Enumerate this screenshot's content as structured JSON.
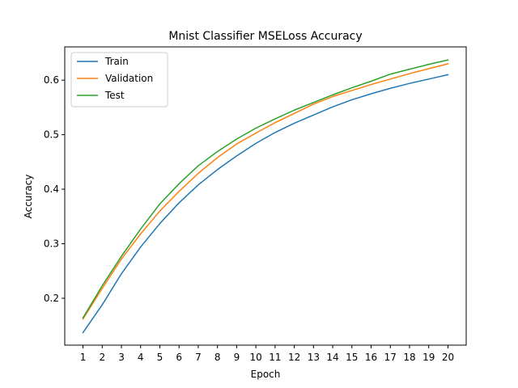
{
  "chart_data": {
    "type": "line",
    "title": "Mnist Classifier MSELoss Accuracy",
    "xlabel": "Epoch",
    "ylabel": "Accuracy",
    "x": [
      1,
      2,
      3,
      4,
      5,
      6,
      7,
      8,
      9,
      10,
      11,
      12,
      13,
      14,
      15,
      16,
      17,
      18,
      19,
      20
    ],
    "x_ticks": [
      "1",
      "2",
      "3",
      "4",
      "5",
      "6",
      "7",
      "8",
      "9",
      "10",
      "11",
      "12",
      "13",
      "14",
      "15",
      "16",
      "17",
      "18",
      "19",
      "20"
    ],
    "y_ticks": [
      "0.2",
      "0.3",
      "0.4",
      "0.5",
      "0.6"
    ],
    "y_tick_values": [
      0.2,
      0.3,
      0.4,
      0.5,
      0.6
    ],
    "xlim": [
      0.05,
      20.95
    ],
    "ylim": [
      0.114,
      0.661
    ],
    "grid": false,
    "legend_position": "top-left",
    "series": [
      {
        "name": "Train",
        "color": "#1f77b4",
        "values": [
          0.137,
          0.188,
          0.245,
          0.294,
          0.337,
          0.375,
          0.408,
          0.436,
          0.461,
          0.484,
          0.504,
          0.521,
          0.536,
          0.551,
          0.564,
          0.575,
          0.585,
          0.594,
          0.602,
          0.61
        ]
      },
      {
        "name": "Validation",
        "color": "#ff7f0e",
        "values": [
          0.162,
          0.218,
          0.272,
          0.318,
          0.36,
          0.396,
          0.429,
          0.458,
          0.483,
          0.503,
          0.522,
          0.539,
          0.556,
          0.57,
          0.581,
          0.592,
          0.602,
          0.612,
          0.621,
          0.63
        ]
      },
      {
        "name": "Test",
        "color": "#2ca02c",
        "values": [
          0.164,
          0.223,
          0.277,
          0.327,
          0.373,
          0.41,
          0.443,
          0.469,
          0.492,
          0.512,
          0.529,
          0.545,
          0.559,
          0.573,
          0.586,
          0.598,
          0.611,
          0.62,
          0.629,
          0.637
        ]
      }
    ]
  }
}
